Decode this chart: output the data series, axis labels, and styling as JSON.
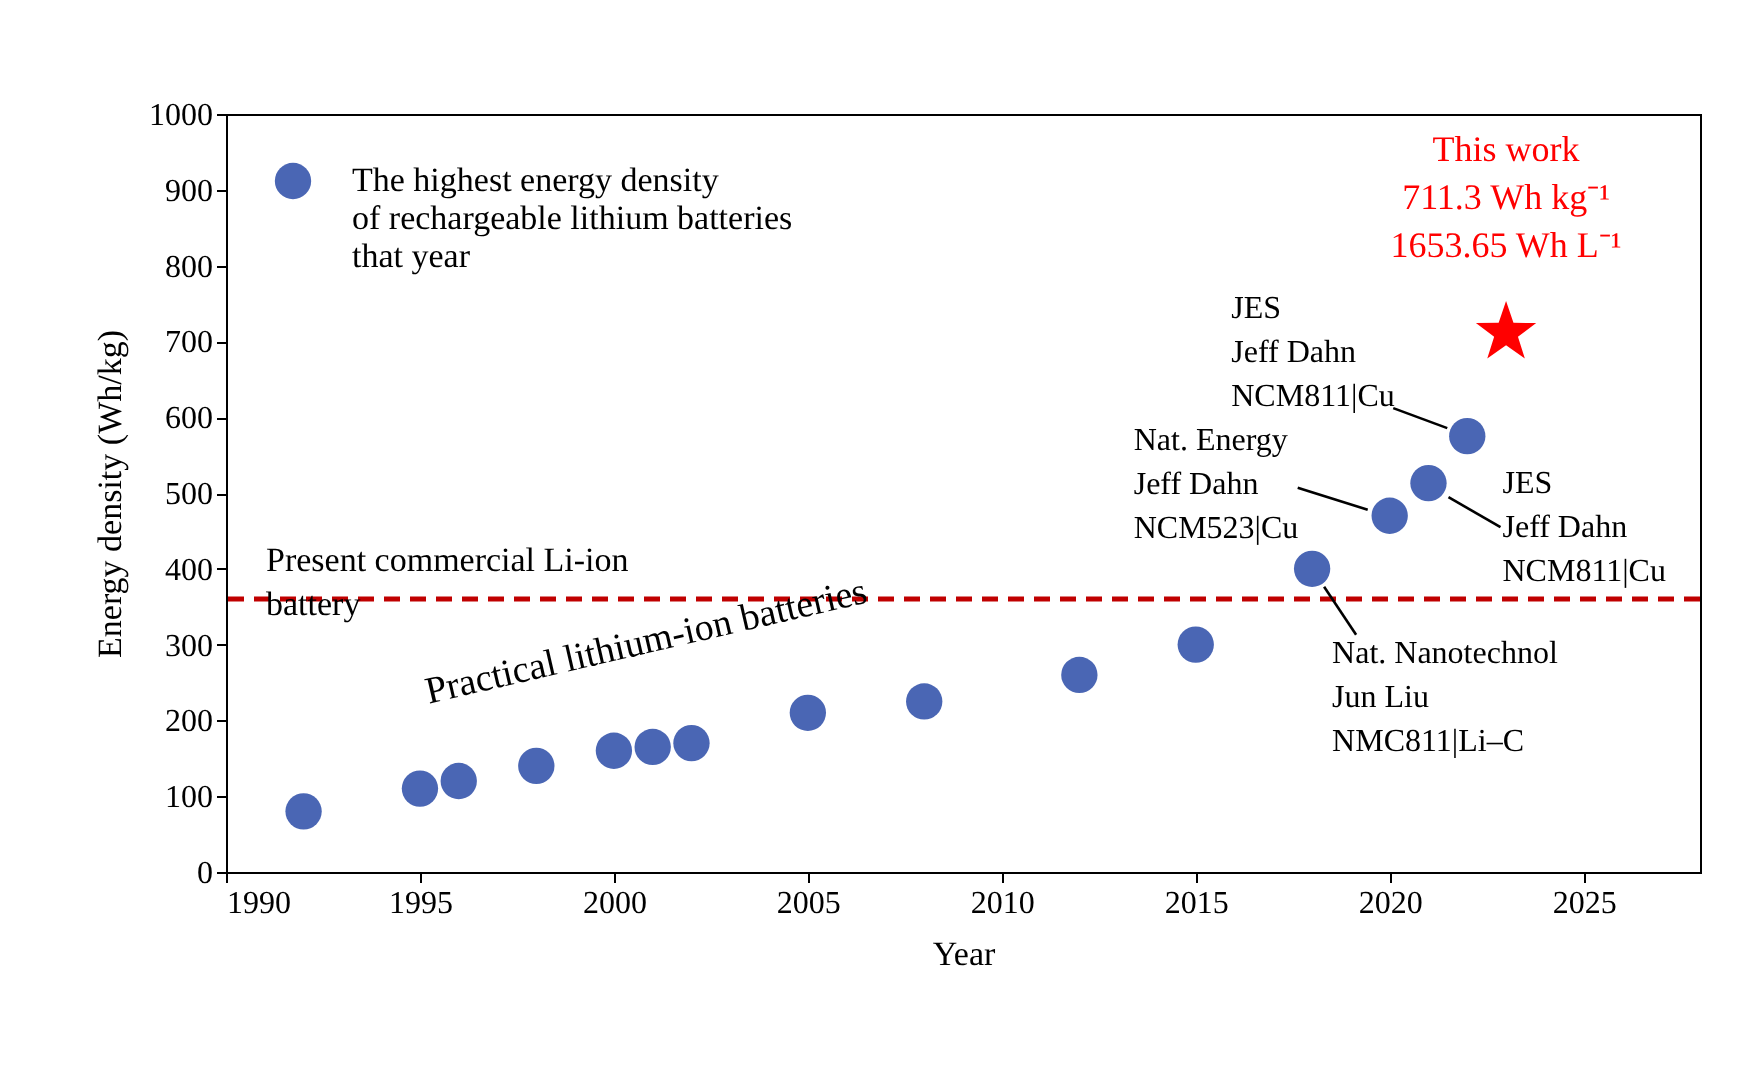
{
  "chart_data": {
    "type": "scatter",
    "xlabel": "Year",
    "ylabel": "Energy density (Wh/kg)",
    "xlim": [
      1990,
      2028
    ],
    "xticks": [
      1990,
      1995,
      2000,
      2005,
      2010,
      2015,
      2020,
      2025
    ],
    "ylim": [
      0,
      1000
    ],
    "yticks": [
      0,
      100,
      200,
      300,
      400,
      500,
      600,
      700,
      800,
      900,
      1000
    ],
    "grid": false,
    "legend": "top left",
    "series": [
      {
        "name": "The highest energy density\nof rechargeable lithium batteries\nthat year",
        "color": "#4a66b4",
        "marker": "circle",
        "x": [
          1992,
          1995,
          1996,
          1998,
          2000,
          2001,
          2002,
          2005,
          2008,
          2012,
          2015,
          2018,
          2020,
          2021,
          2022
        ],
        "values": [
          80,
          110,
          120,
          140,
          160,
          165,
          170,
          210,
          225,
          260,
          300,
          400,
          470,
          513,
          575
        ]
      },
      {
        "color": "#ff0000",
        "marker": "star",
        "x": [
          2023
        ],
        "values": [
          711.3
        ]
      }
    ],
    "ref_lines": [
      {
        "axis": "y",
        "value": 360,
        "label": "Present commercial Li-ion\nbattery",
        "color": "#c00000",
        "line_style": "dashed"
      }
    ],
    "annotations": [
      {
        "text": "This work\n711.3 Wh kg⁻¹\n1653.65 Wh L⁻¹",
        "x": 2023,
        "y": 711.3
      },
      {
        "text": "JES\nJeff Dahn\nNCM811|Cu",
        "x": 2022,
        "y": 575
      },
      {
        "text": "Nat. Energy\nJeff Dahn\nNCM523|Cu",
        "x": 2020,
        "y": 470
      },
      {
        "text": "JES\nJeff Dahn\nNCM811|Cu",
        "x": 2021,
        "y": 513
      },
      {
        "text": "Nat. Nanotechnol\nJun Liu\nNMC811|Li–C",
        "x": 2018,
        "y": 400
      },
      "Practical  lithium-ion  batteries"
    ]
  }
}
